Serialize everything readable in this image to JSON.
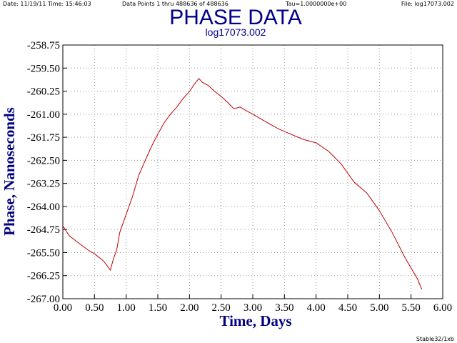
{
  "chart_data": {
    "type": "line",
    "title": "PHASE DATA",
    "subtitle": "log17073.002",
    "header": [
      "Date: 11/19/11  Time: 15:46:03",
      "Data Points 1 thru 488636 of 488636",
      "Tau=1.0000000e+00",
      "File: log17073.002"
    ],
    "footer": "Stable32/1xb",
    "xlabel": "Time, Days",
    "ylabel": "Phase, Nanoseconds",
    "xlim": [
      0,
      6
    ],
    "ylim": [
      -267,
      -258.75
    ],
    "xticks": [
      {
        "value": 0,
        "label": "0.00"
      },
      {
        "value": 0.5,
        "label": "0.50"
      },
      {
        "value": 1,
        "label": "1.00"
      },
      {
        "value": 1.5,
        "label": "1.50"
      },
      {
        "value": 2,
        "label": "2.00"
      },
      {
        "value": 2.5,
        "label": "2.50"
      },
      {
        "value": 3,
        "label": "3.00"
      },
      {
        "value": 3.5,
        "label": "3.50"
      },
      {
        "value": 4,
        "label": "4.00"
      },
      {
        "value": 4.5,
        "label": "4.50"
      },
      {
        "value": 5,
        "label": "5.00"
      },
      {
        "value": 5.5,
        "label": "5.50"
      },
      {
        "value": 6,
        "label": "6.00"
      }
    ],
    "yticks": [
      -258.75,
      {
        "value": -259.5,
        "label": "-259.50"
      },
      -260.25,
      {
        "value": -261,
        "label": "-261.00"
      },
      -261.75,
      {
        "value": -262.5,
        "label": "-262.50"
      },
      -263.25,
      {
        "value": -264,
        "label": "-264.00"
      },
      -264.75,
      {
        "value": -265.5,
        "label": "-265.50"
      },
      -266.25,
      {
        "value": -267,
        "label": "-267.00"
      }
    ],
    "grid": true,
    "series": [
      {
        "color": "#c00000",
        "x": [
          0,
          0.1,
          0.25,
          0.4,
          0.5,
          0.6,
          0.65,
          0.7,
          0.75,
          0.8,
          0.85,
          0.9,
          1.0,
          1.1,
          1.2,
          1.3,
          1.4,
          1.5,
          1.6,
          1.7,
          1.8,
          1.9,
          2.0,
          2.1,
          2.15,
          2.2,
          2.3,
          2.4,
          2.5,
          2.6,
          2.7,
          2.8,
          2.9,
          3.0,
          3.2,
          3.4,
          3.6,
          3.8,
          4.0,
          4.2,
          4.4,
          4.6,
          4.8,
          5.0,
          5.2,
          5.4,
          5.6,
          5.67
        ],
        "values": [
          -264.63,
          -264.95,
          -265.19,
          -265.42,
          -265.54,
          -265.7,
          -265.79,
          -265.93,
          -266.07,
          -265.7,
          -265.42,
          -264.84,
          -264.26,
          -263.68,
          -262.98,
          -262.51,
          -262.05,
          -261.65,
          -261.28,
          -261.0,
          -260.77,
          -260.49,
          -260.26,
          -259.96,
          -259.84,
          -259.96,
          -260.07,
          -260.26,
          -260.42,
          -260.61,
          -260.82,
          -260.77,
          -260.89,
          -261.0,
          -261.24,
          -261.47,
          -261.65,
          -261.82,
          -261.93,
          -262.21,
          -262.63,
          -263.21,
          -263.56,
          -264.14,
          -264.84,
          -265.65,
          -266.35,
          -266.7
        ]
      }
    ]
  }
}
